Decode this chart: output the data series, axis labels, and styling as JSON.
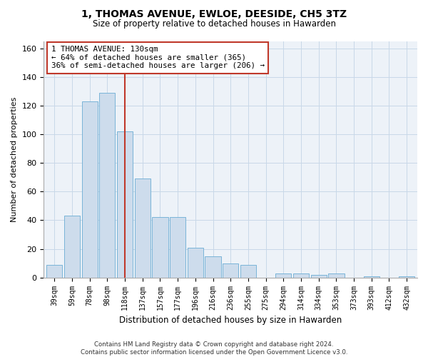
{
  "title": "1, THOMAS AVENUE, EWLOE, DEESIDE, CH5 3TZ",
  "subtitle": "Size of property relative to detached houses in Hawarden",
  "xlabel": "Distribution of detached houses by size in Hawarden",
  "ylabel": "Number of detached properties",
  "bar_color": "#cddcec",
  "bar_edge_color": "#6aacd4",
  "categories": [
    "39sqm",
    "59sqm",
    "78sqm",
    "98sqm",
    "118sqm",
    "137sqm",
    "157sqm",
    "177sqm",
    "196sqm",
    "216sqm",
    "236sqm",
    "255sqm",
    "275sqm",
    "294sqm",
    "314sqm",
    "334sqm",
    "353sqm",
    "373sqm",
    "393sqm",
    "412sqm",
    "432sqm"
  ],
  "values": [
    9,
    43,
    123,
    129,
    102,
    69,
    42,
    42,
    21,
    15,
    10,
    9,
    0,
    3,
    3,
    2,
    3,
    0,
    1,
    0,
    1
  ],
  "property_line_x": 4.5,
  "property_line_color": "#c0392b",
  "annotation_text": "1 THOMAS AVENUE: 130sqm\n← 64% of detached houses are smaller (365)\n36% of semi-detached houses are larger (206) →",
  "annotation_box_color": "#c0392b",
  "ylim": [
    0,
    165
  ],
  "yticks": [
    0,
    20,
    40,
    60,
    80,
    100,
    120,
    140,
    160
  ],
  "footer_text": "Contains HM Land Registry data © Crown copyright and database right 2024.\nContains public sector information licensed under the Open Government Licence v3.0.",
  "grid_color": "#c8d8e8",
  "background_color": "#edf2f8"
}
